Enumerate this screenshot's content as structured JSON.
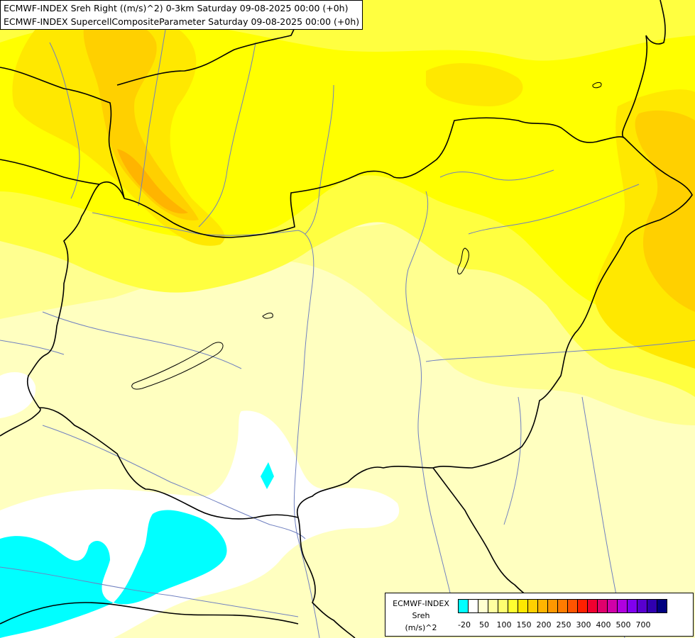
{
  "header": {
    "line1": "ECMWF-INDEX Sreh Right ((m/s)^2) 0-3km Saturday 09-08-2025 00:00 (+0h)",
    "line2": "ECMWF-INDEX SupercellCompositeParameter Saturday 09-08-2025 00:00 (+0h)"
  },
  "legend": {
    "model": "ECMWF-INDEX",
    "variable": "Sreh",
    "unit": "(m/s)^2",
    "colors": [
      "#00ffff",
      "#ffffff",
      "#ffffd0",
      "#ffffa0",
      "#ffff70",
      "#ffff30",
      "#ffe800",
      "#ffd000",
      "#ffb400",
      "#ff9800",
      "#ff7c00",
      "#ff5400",
      "#ff2000",
      "#f00030",
      "#e0006c",
      "#d000a8",
      "#b000e0",
      "#8000f0",
      "#5800d0",
      "#3000b0",
      "#000080"
    ],
    "ticks": [
      {
        "label": "-20",
        "index": 0
      },
      {
        "label": "50",
        "index": 2
      },
      {
        "label": "100",
        "index": 4
      },
      {
        "label": "150",
        "index": 6
      },
      {
        "label": "200",
        "index": 8
      },
      {
        "label": "250",
        "index": 10
      },
      {
        "label": "300",
        "index": 12
      },
      {
        "label": "400",
        "index": 14
      },
      {
        "label": "500",
        "index": 16
      },
      {
        "label": "700",
        "index": 18
      }
    ]
  },
  "field_colors": {
    "very_low": "#00ffff",
    "low": "#ffffff",
    "light": "#ffffc0",
    "pale": "#ffff90",
    "medium": "#ffff50",
    "yellow": "#ffff00",
    "gold": "#ffe800",
    "orange": "#ffd000",
    "deep_orange": "#ffb400",
    "border": "#000000",
    "river": "#7080c0"
  }
}
